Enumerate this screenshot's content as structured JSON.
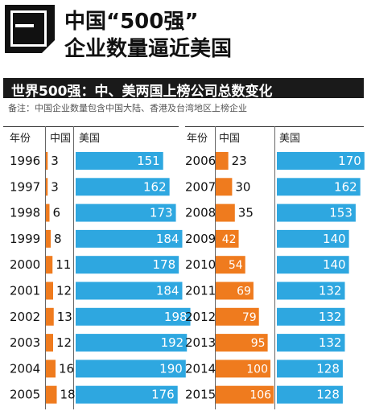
{
  "header": {
    "logo_text": "一",
    "title_line1": "中国“500强”",
    "title_line2": "企业数量逼近美国"
  },
  "subtitle": "世界500强：中、美两国上榜公司总数变化",
  "note": "备注：中国企业数量包含中国大陆、香港及台湾地区上榜企业",
  "columns": {
    "year": "年份",
    "china": "中国",
    "usa": "美国"
  },
  "colors": {
    "china": "#ef7b1e",
    "usa": "#2ea7e0",
    "header_bar": "#1a1a1a"
  },
  "chart_data": {
    "type": "bar",
    "categories": [
      "1996",
      "1997",
      "1998",
      "1999",
      "2000",
      "2001",
      "2002",
      "2003",
      "2004",
      "2005",
      "2006",
      "2007",
      "2008",
      "2009",
      "2010",
      "2011",
      "2012",
      "2013",
      "2014",
      "2015"
    ],
    "series": [
      {
        "name": "中国",
        "values": [
          3,
          3,
          6,
          8,
          11,
          12,
          13,
          12,
          16,
          18,
          23,
          30,
          35,
          42,
          54,
          69,
          79,
          95,
          100,
          106
        ]
      },
      {
        "name": "美国",
        "values": [
          151,
          162,
          173,
          184,
          178,
          184,
          198,
          192,
          190,
          176,
          170,
          162,
          153,
          140,
          140,
          132,
          132,
          132,
          128,
          128
        ]
      }
    ]
  }
}
